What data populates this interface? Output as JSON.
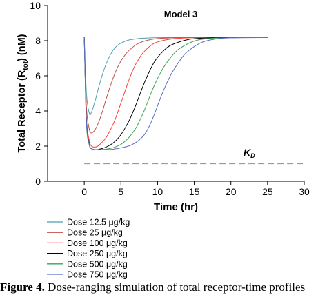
{
  "chart_data": {
    "type": "line",
    "title": "Model 3",
    "xlabel": "Time (hr)",
    "ylabel_main": "Total Receptor (R",
    "ylabel_sub": "tot",
    "ylabel_end": ") (nM)",
    "xlim": [
      -5,
      30
    ],
    "ylim": [
      0,
      10
    ],
    "xticks": [
      0,
      5,
      10,
      15,
      20,
      25,
      30
    ],
    "yticks": [
      0,
      2,
      4,
      6,
      8,
      10
    ],
    "grid": false,
    "legend_position": "bottom-left",
    "reference_line": {
      "label_main": "K",
      "label_sub": "D",
      "y": 1.0,
      "style": "dashed",
      "color": "#999999"
    },
    "series": [
      {
        "name": "Dose 12.5 μg/kg",
        "color": "#4f9fb0",
        "x": [
          0,
          0.3,
          0.7,
          1.0,
          1.5,
          2,
          2.5,
          3,
          3.5,
          4,
          4.5,
          5,
          6,
          7,
          8,
          9,
          10,
          12,
          15,
          20,
          25
        ],
        "y": [
          8.2,
          5.0,
          3.85,
          3.95,
          4.6,
          5.4,
          6.1,
          6.7,
          7.15,
          7.5,
          7.72,
          7.86,
          8.03,
          8.1,
          8.14,
          8.16,
          8.17,
          8.18,
          8.18,
          8.18,
          8.18
        ]
      },
      {
        "name": "Dose 25 μg/kg",
        "color": "#c0504d",
        "x": [
          0,
          0.3,
          0.7,
          1.0,
          1.5,
          2,
          2.5,
          3,
          3.5,
          4,
          4.5,
          5,
          5.5,
          6,
          7,
          8,
          9,
          10,
          12,
          15,
          20,
          25
        ],
        "y": [
          8.2,
          4.2,
          2.95,
          2.75,
          2.95,
          3.4,
          4.0,
          4.7,
          5.35,
          5.95,
          6.45,
          6.85,
          7.15,
          7.4,
          7.75,
          7.95,
          8.06,
          8.12,
          8.16,
          8.18,
          8.18,
          8.18
        ]
      },
      {
        "name": "Dose 100 μg/kg",
        "color": "#ff3b30",
        "x": [
          0,
          0.3,
          0.7,
          1.0,
          1.5,
          2,
          3,
          4,
          4.5,
          5,
          5.5,
          6,
          6.5,
          7,
          7.5,
          8,
          9,
          10,
          12,
          15,
          20,
          25
        ],
        "y": [
          8.2,
          3.6,
          2.3,
          2.0,
          1.95,
          2.05,
          2.5,
          3.3,
          3.85,
          4.45,
          5.05,
          5.65,
          6.2,
          6.65,
          7.0,
          7.3,
          7.7,
          7.93,
          8.1,
          8.17,
          8.18,
          8.18
        ]
      },
      {
        "name": "Dose 250 μg/kg",
        "color": "#000000",
        "x": [
          0,
          0.3,
          0.7,
          1.0,
          1.5,
          2,
          3,
          4,
          5,
          6,
          6.5,
          7,
          7.5,
          8,
          8.5,
          9,
          9.5,
          10,
          11,
          12,
          14,
          16,
          20,
          25
        ],
        "y": [
          8.2,
          3.4,
          2.1,
          1.85,
          1.8,
          1.82,
          1.95,
          2.2,
          2.65,
          3.35,
          3.8,
          4.3,
          4.85,
          5.4,
          5.9,
          6.35,
          6.75,
          7.05,
          7.5,
          7.78,
          8.05,
          8.14,
          8.18,
          8.18
        ]
      },
      {
        "name": "Dose 500 μg/kg",
        "color": "#3aa34f",
        "x": [
          0,
          0.3,
          0.7,
          1.0,
          1.5,
          2,
          3,
          4,
          5,
          6,
          7,
          7.5,
          8,
          8.5,
          9,
          9.5,
          10,
          10.5,
          11,
          12,
          13,
          15,
          17,
          20,
          25
        ],
        "y": [
          8.2,
          3.3,
          2.05,
          1.85,
          1.8,
          1.8,
          1.83,
          1.92,
          2.1,
          2.45,
          3.0,
          3.4,
          3.85,
          4.35,
          4.9,
          5.4,
          5.85,
          6.25,
          6.6,
          7.15,
          7.55,
          7.98,
          8.12,
          8.17,
          8.18
        ]
      },
      {
        "name": "Dose 750 μg/kg",
        "color": "#5b6fc7",
        "x": [
          0,
          0.3,
          0.7,
          1.0,
          1.5,
          2,
          3,
          4,
          5,
          6,
          7,
          8,
          8.5,
          9,
          9.5,
          10,
          10.5,
          11,
          11.5,
          12,
          13,
          14,
          16,
          18,
          20,
          25
        ],
        "y": [
          8.2,
          3.3,
          2.05,
          1.85,
          1.8,
          1.8,
          1.8,
          1.83,
          1.9,
          2.0,
          2.2,
          2.55,
          2.85,
          3.25,
          3.75,
          4.3,
          4.85,
          5.35,
          5.8,
          6.2,
          6.85,
          7.35,
          7.9,
          8.1,
          8.16,
          8.18
        ]
      }
    ]
  },
  "caption": {
    "bold": "Figure 4.",
    "text": " Dose-ranging simulation of total receptor-time profiles"
  }
}
